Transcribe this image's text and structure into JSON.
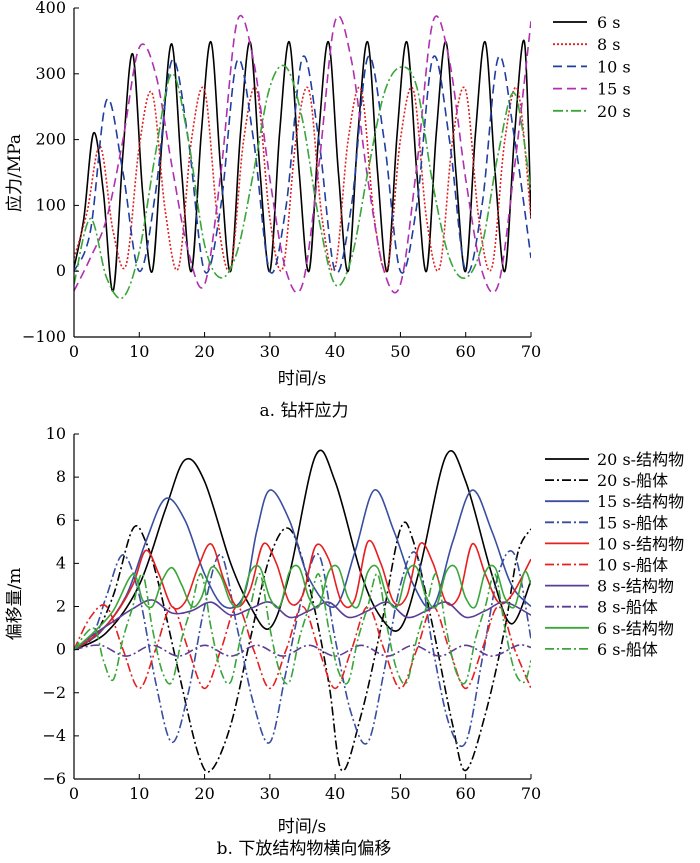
{
  "chart_data": [
    {
      "type": "line",
      "caption": "a. 钻杆应力",
      "xlabel": "时间/s",
      "ylabel": "应力/MPa",
      "xlim": [
        0,
        70
      ],
      "ylim": [
        -100,
        400
      ],
      "xticks": [
        0,
        10,
        20,
        30,
        40,
        50,
        60,
        70
      ],
      "yticks": [
        -100,
        0,
        100,
        200,
        300,
        400
      ],
      "grid": false,
      "legend": "top-right",
      "series": [
        {
          "name": "6 s",
          "color": "#000000",
          "dash": "solid",
          "x": [
            0,
            1.5,
            3,
            4.5,
            6,
            7.5,
            9,
            10.5,
            12,
            13.5,
            15,
            16.5,
            18,
            19.5,
            21,
            22.5,
            24,
            25.5,
            27,
            28.5,
            30,
            31.5,
            33,
            34.5,
            36,
            37.5,
            39,
            40.5,
            42,
            43.5,
            45,
            46.5,
            48,
            49.5,
            51,
            52.5,
            54,
            55.5,
            57,
            58.5,
            60,
            61.5,
            63,
            64.5,
            66,
            67.5,
            69,
            70
          ],
          "y": [
            5,
            80,
            210,
            120,
            -30,
            180,
            330,
            120,
            0,
            200,
            345,
            150,
            0,
            210,
            348,
            150,
            0,
            210,
            348,
            150,
            0,
            210,
            348,
            150,
            0,
            210,
            348,
            150,
            0,
            210,
            348,
            150,
            0,
            210,
            348,
            150,
            0,
            210,
            348,
            150,
            0,
            210,
            348,
            150,
            0,
            210,
            348,
            80
          ]
        },
        {
          "name": "8 s",
          "color": "#e02020",
          "dash": "2,2",
          "x": [
            0,
            2,
            4,
            6,
            8,
            10,
            12,
            14,
            16,
            18,
            20,
            22,
            24,
            26,
            28,
            30,
            32,
            34,
            36,
            38,
            40,
            42,
            44,
            46,
            48,
            50,
            52,
            54,
            56,
            58,
            60,
            62,
            64,
            66,
            68,
            70
          ],
          "y": [
            20,
            90,
            190,
            60,
            10,
            190,
            270,
            90,
            5,
            200,
            275,
            80,
            5,
            200,
            275,
            80,
            5,
            200,
            275,
            80,
            5,
            200,
            275,
            80,
            5,
            200,
            275,
            80,
            5,
            200,
            275,
            80,
            5,
            200,
            275,
            80
          ]
        },
        {
          "name": "10 s",
          "color": "#1f3f9f",
          "dash": "9,5",
          "x": [
            0,
            2.5,
            5,
            7.5,
            10,
            12.5,
            15,
            17.5,
            20,
            22.5,
            25,
            27.5,
            30,
            32.5,
            35,
            37.5,
            40,
            42.5,
            45,
            47.5,
            50,
            52.5,
            55,
            57.5,
            60,
            62.5,
            65,
            67.5,
            70
          ],
          "y": [
            0,
            60,
            260,
            150,
            0,
            120,
            320,
            200,
            0,
            100,
            320,
            200,
            0,
            100,
            325,
            200,
            0,
            100,
            325,
            200,
            0,
            100,
            325,
            200,
            0,
            100,
            325,
            200,
            20
          ]
        },
        {
          "name": "15 s",
          "color": "#b030b0",
          "dash": "9,5",
          "x": [
            0,
            2.5,
            5,
            7.5,
            10,
            12.5,
            15,
            17.5,
            20,
            22.5,
            25,
            27.5,
            30,
            32.5,
            35,
            37.5,
            40,
            42.5,
            45,
            47.5,
            50,
            52.5,
            55,
            57.5,
            60,
            62.5,
            65,
            67.5,
            70
          ],
          "y": [
            -30,
            20,
            80,
            200,
            340,
            300,
            160,
            30,
            -20,
            150,
            380,
            320,
            140,
            0,
            -20,
            160,
            380,
            320,
            140,
            0,
            -20,
            160,
            380,
            320,
            140,
            0,
            -20,
            160,
            380
          ]
        },
        {
          "name": "20 s",
          "color": "#3aa63a",
          "dash": "10,3,2,3",
          "x": [
            0,
            2.5,
            5,
            7.5,
            10,
            12.5,
            15,
            17.5,
            20,
            22.5,
            25,
            27.5,
            30,
            32.5,
            35,
            37.5,
            40,
            42.5,
            45,
            47.5,
            50,
            52.5,
            55,
            57.5,
            60,
            62.5,
            65,
            67.5,
            70
          ],
          "y": [
            -20,
            80,
            -10,
            -40,
            30,
            180,
            300,
            200,
            40,
            -10,
            30,
            150,
            280,
            310,
            230,
            80,
            -20,
            20,
            150,
            270,
            310,
            280,
            130,
            20,
            -10,
            40,
            180,
            270,
            120
          ]
        }
      ]
    },
    {
      "type": "line",
      "caption": "b. 下放结构物横向偏移",
      "xlabel": "时间/s",
      "ylabel": "偏移量/m",
      "xlim": [
        0,
        70
      ],
      "ylim": [
        -6,
        10
      ],
      "xticks": [
        0,
        10,
        20,
        30,
        40,
        50,
        60,
        70
      ],
      "yticks": [
        -6,
        -4,
        -2,
        0,
        2,
        4,
        6,
        8,
        10
      ],
      "grid": false,
      "legend": "right",
      "series": [
        {
          "name": "20 s-结构物",
          "color": "#000000",
          "dash": "solid",
          "x": [
            0,
            5,
            10,
            14,
            17,
            20,
            24,
            27,
            30,
            33,
            37,
            40,
            44,
            47,
            50,
            53,
            57,
            60,
            64,
            67,
            70
          ],
          "y": [
            0,
            0.8,
            3.0,
            6.5,
            8.8,
            7.8,
            4,
            2,
            1.0,
            3.5,
            9.0,
            7.8,
            3.5,
            1.5,
            1.0,
            3.8,
            9.0,
            7.8,
            3.5,
            1.2,
            3.2
          ]
        },
        {
          "name": "20 s-船体",
          "color": "#000000",
          "dash": "9,3,2,3",
          "x": [
            0,
            3,
            6,
            9,
            11,
            13,
            16,
            19,
            21,
            24,
            27,
            30,
            33,
            36,
            39,
            41,
            44,
            47,
            50,
            52,
            55,
            58,
            60,
            63,
            66,
            68,
            70
          ],
          "y": [
            0,
            0.6,
            2.5,
            5.6,
            5.0,
            3,
            -1,
            -4.8,
            -5.6,
            -3.5,
            0.5,
            4.3,
            5.6,
            3,
            -1.5,
            -5.6,
            -3,
            1,
            5.6,
            5,
            1,
            -3.5,
            -5.6,
            -3,
            1,
            4.5,
            5.6
          ]
        },
        {
          "name": "15 s-结构物",
          "color": "#3a4ea0",
          "dash": "solid",
          "x": [
            0,
            4,
            8,
            11,
            14,
            17,
            20,
            23,
            26,
            28,
            30,
            33,
            36,
            40,
            43,
            46,
            49,
            52,
            55,
            58,
            61,
            64,
            67,
            70
          ],
          "y": [
            0,
            0.8,
            2.5,
            5,
            7.0,
            6,
            3.5,
            2,
            2.5,
            5.5,
            7.4,
            6,
            3.3,
            2,
            4.5,
            7.4,
            5.5,
            3,
            2,
            5,
            7.4,
            5.5,
            3,
            2
          ]
        },
        {
          "name": "15 s-船体",
          "color": "#3a4ea0",
          "dash": "9,3,2,3",
          "x": [
            0,
            3,
            5,
            7.5,
            10,
            12.5,
            15,
            17.5,
            20,
            22.5,
            25,
            27.5,
            30,
            32.5,
            35,
            37.5,
            40,
            42.5,
            45,
            47.5,
            50,
            52.5,
            55,
            57.5,
            60,
            62.5,
            65,
            67.5,
            70
          ],
          "y": [
            0,
            0.8,
            2.5,
            4.4,
            2.5,
            -1.5,
            -4.3,
            -2,
            2,
            4.4,
            1,
            -2.5,
            -4.3,
            -1,
            2.5,
            4.4,
            0.5,
            -3,
            -4.3,
            -1,
            3,
            4.4,
            0,
            -3.5,
            -4.3,
            -0.5,
            3.5,
            4.4,
            0.5
          ]
        },
        {
          "name": "10 s-结构物",
          "color": "#e62020",
          "dash": "solid",
          "x": [
            0,
            3,
            6,
            9,
            11,
            13,
            15,
            17,
            19,
            21,
            23,
            25,
            27,
            29,
            31,
            33,
            35,
            37,
            39,
            41,
            43,
            45,
            47,
            49,
            51,
            53,
            55,
            57,
            59,
            61,
            63,
            65,
            67,
            70
          ],
          "y": [
            0,
            0.6,
            1.5,
            3,
            4.6,
            3.5,
            2,
            2.2,
            3.8,
            4.9,
            3.2,
            2,
            2.8,
            4.9,
            4,
            2.2,
            2.5,
            4.8,
            4.2,
            2.2,
            2.3,
            5,
            4,
            2.2,
            2.5,
            4.9,
            4,
            2.2,
            2.5,
            4.9,
            3.5,
            2.2,
            2.5,
            4.2
          ]
        },
        {
          "name": "10 s-船体",
          "color": "#e62020",
          "dash": "9,3,2,3",
          "x": [
            0,
            2.5,
            5,
            7.5,
            10,
            12.5,
            15,
            17.5,
            20,
            22.5,
            25,
            27.5,
            30,
            32.5,
            35,
            37.5,
            40,
            42.5,
            45,
            47.5,
            50,
            52.5,
            55,
            57.5,
            60,
            62.5,
            65,
            67.5,
            70
          ],
          "y": [
            0,
            1.5,
            2.0,
            0,
            -1.8,
            0,
            2,
            0,
            -1.8,
            0,
            2,
            0,
            -1.8,
            0,
            2,
            0,
            -1.8,
            0,
            2,
            0,
            -1.8,
            0,
            2,
            0,
            -1.8,
            0,
            2,
            0,
            -1.8
          ]
        },
        {
          "name": "8 s-结构物",
          "color": "#5b3d95",
          "dash": "solid",
          "x": [
            0,
            3,
            6,
            9,
            12,
            15,
            18,
            21,
            24,
            27,
            30,
            33,
            36,
            39,
            42,
            45,
            48,
            51,
            54,
            57,
            60,
            63,
            66,
            70
          ],
          "y": [
            0,
            0.7,
            1.3,
            1.9,
            2.3,
            1.7,
            1.8,
            2.2,
            1.6,
            1.9,
            2.2,
            1.5,
            1.8,
            2.2,
            1.5,
            1.8,
            2.2,
            1.5,
            1.8,
            2.2,
            1.5,
            1.8,
            2.2,
            1.6
          ]
        },
        {
          "name": "8 s-船体",
          "color": "#5b3d95",
          "dash": "9,3,2,3",
          "x": [
            0,
            4,
            8,
            12,
            16,
            20,
            24,
            28,
            32,
            36,
            40,
            44,
            48,
            52,
            56,
            60,
            64,
            68,
            70
          ],
          "y": [
            0,
            0.2,
            -0.3,
            0.2,
            -0.3,
            0.2,
            -0.3,
            0.2,
            -0.3,
            0.2,
            -0.3,
            0.2,
            -0.3,
            0.2,
            -0.3,
            0.2,
            -0.3,
            0.2,
            0.1
          ]
        },
        {
          "name": "6 s-结构物",
          "color": "#3aa63a",
          "dash": "solid",
          "x": [
            0,
            3,
            6,
            9,
            10.5,
            12,
            13.5,
            15,
            16.5,
            18,
            19.5,
            21,
            22.5,
            24,
            25.5,
            27,
            28.5,
            30,
            31.5,
            33,
            34.5,
            36,
            37.5,
            39,
            40.5,
            42,
            43.5,
            45,
            46.5,
            48,
            49.5,
            51,
            52.5,
            54,
            55.5,
            57,
            58.5,
            60,
            61.5,
            63,
            64.5,
            66,
            67.5,
            69,
            70
          ],
          "y": [
            0,
            0.8,
            1.8,
            3.5,
            2.3,
            2.0,
            3.2,
            3.8,
            3.0,
            2.0,
            2.4,
            3.8,
            3.4,
            2.2,
            2.1,
            3.6,
            3.8,
            2.4,
            2.0,
            3.6,
            3.8,
            2.4,
            2.0,
            3.6,
            3.8,
            2.4,
            2.0,
            3.6,
            3.8,
            2.4,
            2.0,
            3.6,
            3.8,
            2.4,
            2.0,
            3.6,
            3.8,
            2.4,
            2.0,
            3.6,
            3.8,
            2.4,
            2.0,
            3.6,
            3.0
          ]
        },
        {
          "name": "6 s-船体",
          "color": "#3aa63a",
          "dash": "9,3,2,3",
          "x": [
            0,
            3,
            4.5,
            6,
            7.5,
            9,
            10.5,
            12,
            13.5,
            15,
            16.5,
            18,
            19.5,
            21,
            22.5,
            24,
            25.5,
            27,
            28.5,
            30,
            31.5,
            33,
            34.5,
            36,
            37.5,
            39,
            40.5,
            42,
            43.5,
            45,
            46.5,
            48,
            49.5,
            51,
            52.5,
            54,
            55.5,
            57,
            58.5,
            60,
            61.5,
            63,
            64.5,
            66,
            67.5,
            69,
            70
          ],
          "y": [
            0,
            1,
            -0.5,
            -1.4,
            0.5,
            2,
            3.5,
            1,
            -1,
            -1.5,
            0.5,
            2,
            3.5,
            1,
            -1,
            -1.5,
            0.5,
            2,
            3.5,
            1,
            -1,
            -1.5,
            0.5,
            2,
            3.5,
            1,
            -1,
            -1.5,
            0.5,
            2,
            3.5,
            1,
            -1,
            -1.5,
            0.5,
            2,
            3.5,
            1,
            -1,
            -1.5,
            0.5,
            2,
            3.5,
            1,
            -1,
            -1.5,
            -0.5
          ]
        }
      ]
    }
  ]
}
